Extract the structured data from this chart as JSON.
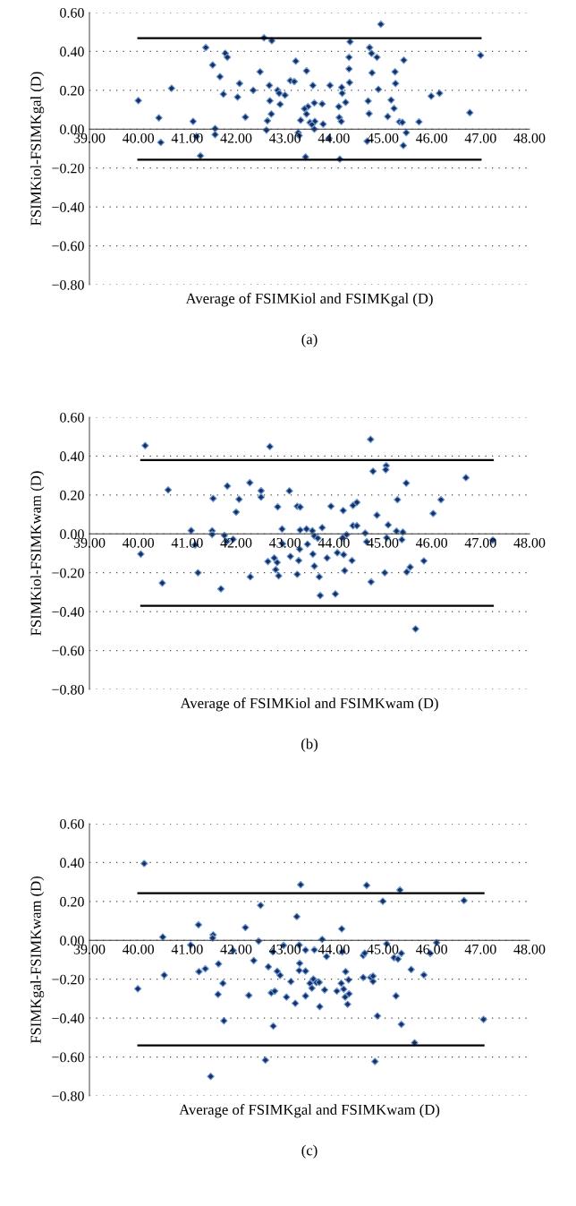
{
  "chart_data": [
    {
      "type": "scatter",
      "title": "(a)",
      "xlabel": "Average of FSIMKiol and FSIMKgal (D)",
      "ylabel": "FSIMKiol-FSIMKgal (D)",
      "xlim": [
        39,
        48
      ],
      "ylim": [
        -0.8,
        0.6
      ],
      "xticks": [
        {
          "value": 39,
          "label": "39.00"
        },
        {
          "value": 40,
          "label": "40.00"
        },
        {
          "value": 41,
          "label": "41.00"
        },
        {
          "value": 42,
          "label": "42.00"
        },
        {
          "value": 43,
          "label": "43.00"
        },
        {
          "value": 44,
          "label": "44.00"
        },
        {
          "value": 45,
          "label": "45.00"
        },
        {
          "value": 46,
          "label": "46.00"
        },
        {
          "value": 47,
          "label": "47.00"
        },
        {
          "value": 48,
          "label": "48.00"
        }
      ],
      "yticks": [
        {
          "value": -0.8,
          "label": "−0.80"
        },
        {
          "value": -0.6,
          "label": "−0.60"
        },
        {
          "value": -0.4,
          "label": "−0.40"
        },
        {
          "value": -0.2,
          "label": "−0.20"
        },
        {
          "value": 0,
          "label": "0.00"
        },
        {
          "value": 0.2,
          "label": "0.20"
        },
        {
          "value": 0.4,
          "label": "0.40"
        },
        {
          "value": 0.6,
          "label": "0.60"
        }
      ],
      "grid": "y",
      "series": [
        {
          "marker": "diamond",
          "color": "#1b2f5e",
          "x": [
            44.96,
            42.57,
            42.73,
            44.33,
            41.38,
            44.73,
            41.78,
            44.77,
            41.82,
            44.88,
            44.31,
            47.0,
            43.22,
            45.43,
            41.52,
            43.44,
            44.31,
            42.49,
            45.25,
            44.78,
            41.67,
            43.11,
            43.19,
            44.32,
            45.26,
            42.07,
            42.68,
            43.57,
            43.92,
            44.16,
            40.68,
            42.35,
            42.85,
            44.91,
            41.74,
            42.88,
            44.17,
            46.16,
            43.0,
            45.99,
            42.03,
            40.0,
            42.69,
            44.7,
            45.17,
            44.24,
            43.6,
            43.76,
            42.9,
            43.47,
            44.1,
            43.4,
            45.23,
            43.44,
            42.72,
            44.72,
            46.78,
            40.42,
            42.19,
            44.11,
            45.1,
            42.64,
            43.32,
            41.12,
            44.15,
            43.61,
            43.51,
            45.34,
            45.4,
            45.74,
            43.55,
            43.78,
            41.57,
            43.6,
            42.62,
            43.27,
            41.19,
            43.29,
            41.57,
            45.48,
            40.46,
            43.9,
            44.68,
            45.42,
            41.27,
            43.42,
            44.12
          ],
          "values": [
            0.54,
            0.47,
            0.455,
            0.45,
            0.42,
            0.42,
            0.39,
            0.39,
            0.37,
            0.37,
            0.37,
            0.38,
            0.35,
            0.355,
            0.33,
            0.3,
            0.31,
            0.295,
            0.295,
            0.29,
            0.27,
            0.25,
            0.245,
            0.24,
            0.235,
            0.235,
            0.225,
            0.225,
            0.225,
            0.215,
            0.21,
            0.2,
            0.2,
            0.205,
            0.18,
            0.185,
            0.185,
            0.185,
            0.175,
            0.17,
            0.165,
            0.147,
            0.146,
            0.145,
            0.15,
            0.138,
            0.135,
            0.13,
            0.128,
            0.116,
            0.116,
            0.105,
            0.107,
            0.078,
            0.078,
            0.08,
            0.085,
            0.058,
            0.062,
            0.06,
            0.065,
            0.043,
            0.046,
            0.04,
            0.04,
            0.04,
            0.034,
            0.038,
            0.035,
            0.038,
            0.024,
            0.026,
            0.003,
            0.0,
            -0.005,
            -0.018,
            -0.037,
            -0.033,
            -0.028,
            -0.018,
            -0.068,
            -0.047,
            -0.062,
            -0.084,
            -0.137,
            -0.143,
            -0.154
          ]
        },
        {
          "type": "line",
          "color": "#000000",
          "x": [
            40.0,
            47.0
          ],
          "values": [
            0.468,
            0.468
          ]
        },
        {
          "type": "line",
          "color": "#000000",
          "x": [
            40.0,
            47.0
          ],
          "values": [
            -0.157,
            -0.157
          ]
        }
      ]
    },
    {
      "type": "scatter",
      "title": "(b)",
      "xlabel": "Average of FSIMKiol and FSIMKwam (D)",
      "ylabel": "FSIMKiol-FSIMKwam (D)",
      "xlim": [
        39,
        48
      ],
      "ylim": [
        -0.8,
        0.6
      ],
      "xticks": [
        {
          "value": 39,
          "label": "39.00"
        },
        {
          "value": 40,
          "label": "40.00"
        },
        {
          "value": 41,
          "label": "41.00"
        },
        {
          "value": 42,
          "label": "42.00"
        },
        {
          "value": 43,
          "label": "43.00"
        },
        {
          "value": 44,
          "label": "44.00"
        },
        {
          "value": 45,
          "label": "45.00"
        },
        {
          "value": 46,
          "label": "46.00"
        },
        {
          "value": 47,
          "label": "47.00"
        },
        {
          "value": 48,
          "label": "48.00"
        }
      ],
      "yticks": [
        {
          "value": -0.8,
          "label": "−0.80"
        },
        {
          "value": -0.6,
          "label": "−0.60"
        },
        {
          "value": -0.4,
          "label": "−0.40"
        },
        {
          "value": -0.2,
          "label": "−0.20"
        },
        {
          "value": 0,
          "label": "0.00"
        },
        {
          "value": 0.2,
          "label": "0.20"
        },
        {
          "value": 0.4,
          "label": "0.40"
        },
        {
          "value": 0.6,
          "label": "0.60"
        }
      ],
      "grid": "y",
      "series": [
        {
          "marker": "diamond",
          "color": "#1b2f5e",
          "x": [
            40.14,
            42.69,
            44.75,
            44.8,
            45.07,
            45.06,
            46.7,
            45.48,
            40.61,
            42.28,
            41.82,
            42.51,
            42.51,
            43.09,
            41.53,
            42.06,
            45.3,
            46.19,
            42.85,
            43.25,
            43.31,
            43.94,
            44.47,
            44.39,
            44.19,
            42.0,
            46.03,
            44.88,
            44.39,
            44.47,
            45.11,
            43.76,
            42.94,
            41.08,
            41.51,
            43.31,
            43.44,
            43.56,
            45.28,
            45.41,
            44.64,
            41.51,
            41.76,
            43.6,
            43.67,
            44.26,
            44.18,
            45.08,
            41.94,
            41.81,
            45.39,
            44.67,
            41.16,
            42.95,
            43.46,
            43.3,
            40.05,
            43.57,
            44.07,
            44.2,
            43.11,
            42.78,
            43.86,
            42.65,
            42.84,
            43.28,
            44.37,
            45.84,
            43.6,
            42.81,
            45.56,
            41.22,
            43.25,
            44.22,
            45.04,
            45.49,
            42.87,
            42.29,
            43.7,
            40.49,
            44.76,
            41.69,
            43.72,
            44.03,
            45.67,
            47.25
          ],
          "values": [
            0.454,
            0.449,
            0.486,
            0.322,
            0.351,
            0.33,
            0.289,
            0.261,
            0.226,
            0.263,
            0.246,
            0.222,
            0.189,
            0.221,
            0.182,
            0.178,
            0.176,
            0.176,
            0.139,
            0.142,
            0.138,
            0.142,
            0.162,
            0.146,
            0.12,
            0.112,
            0.105,
            0.096,
            0.042,
            0.042,
            0.046,
            0.032,
            0.025,
            0.017,
            0.016,
            0.02,
            0.025,
            0.016,
            0.014,
            0.009,
            0.004,
            -0.003,
            -0.008,
            -0.011,
            -0.022,
            -0.004,
            -0.02,
            -0.02,
            -0.028,
            -0.039,
            -0.03,
            -0.041,
            -0.057,
            -0.051,
            -0.053,
            -0.079,
            -0.104,
            -0.104,
            -0.097,
            -0.107,
            -0.116,
            -0.124,
            -0.124,
            -0.142,
            -0.147,
            -0.137,
            -0.137,
            -0.139,
            -0.166,
            -0.184,
            -0.171,
            -0.2,
            -0.208,
            -0.189,
            -0.2,
            -0.196,
            -0.216,
            -0.221,
            -0.221,
            -0.253,
            -0.247,
            -0.283,
            -0.317,
            -0.309,
            -0.489,
            -0.032
          ]
        },
        {
          "type": "line",
          "color": "#000000",
          "x": [
            40.06,
            47.25
          ],
          "values": [
            0.38,
            0.38
          ]
        },
        {
          "type": "line",
          "color": "#000000",
          "x": [
            40.06,
            47.25
          ],
          "values": [
            -0.37,
            -0.37
          ]
        }
      ]
    },
    {
      "type": "scatter",
      "title": "(c)",
      "xlabel": "Average of FSIMKgal and FSIMKwam (D)",
      "ylabel": "FSIMKgal-FSIMKwam (D)",
      "xlim": [
        39,
        48
      ],
      "ylim": [
        -0.8,
        0.6
      ],
      "xticks": [
        {
          "value": 39,
          "label": "39.00"
        },
        {
          "value": 40,
          "label": "40.00"
        },
        {
          "value": 41,
          "label": "41.00"
        },
        {
          "value": 42,
          "label": "42.00"
        },
        {
          "value": 43,
          "label": "43.00"
        },
        {
          "value": 44,
          "label": "44.00"
        },
        {
          "value": 45,
          "label": "45.00"
        },
        {
          "value": 46,
          "label": "46.00"
        },
        {
          "value": 47,
          "label": "47.00"
        },
        {
          "value": 48,
          "label": "48.00"
        }
      ],
      "yticks": [
        {
          "value": -0.8,
          "label": "−0.80"
        },
        {
          "value": -0.6,
          "label": "−0.60"
        },
        {
          "value": -0.4,
          "label": "−0.40"
        },
        {
          "value": -0.2,
          "label": "−0.20"
        },
        {
          "value": 0,
          "label": "0.00"
        },
        {
          "value": 0.2,
          "label": "0.20"
        },
        {
          "value": 0.4,
          "label": "0.40"
        },
        {
          "value": 0.6,
          "label": "0.60"
        }
      ],
      "grid": "y",
      "series": [
        {
          "marker": "diamond",
          "color": "#1b2f5e",
          "x": [
            40.12,
            43.32,
            44.67,
            45.35,
            45.0,
            46.66,
            42.5,
            43.24,
            41.23,
            42.19,
            44.16,
            40.5,
            41.53,
            41.52,
            42.46,
            43.76,
            41.07,
            45.08,
            46.1,
            41.94,
            42.97,
            43.29,
            42.75,
            43.42,
            43.6,
            43.85,
            44.17,
            44.6,
            44.63,
            45.23,
            45.31,
            45.38,
            45.97,
            42.36,
            41.64,
            43.3,
            42.66,
            41.24,
            41.37,
            42.84,
            42.9,
            43.29,
            43.42,
            44.24,
            45.58,
            40.53,
            43.12,
            43.58,
            43.64,
            43.7,
            43.51,
            44.3,
            44.6,
            44.75,
            44.8,
            44.8,
            45.84,
            41.73,
            39.99,
            44.15,
            43.55,
            43.81,
            44.06,
            44.2,
            42.72,
            42.79,
            41.63,
            42.26,
            43.03,
            43.42,
            44.23,
            44.31,
            45.27,
            43.21,
            44.28,
            43.71,
            44.89,
            47.06,
            45.38,
            41.75,
            42.76,
            45.65,
            42.6,
            44.84,
            41.48
          ],
          "values": [
            0.395,
            0.286,
            0.283,
            0.259,
            0.201,
            0.205,
            0.18,
            0.122,
            0.08,
            0.066,
            0.059,
            0.017,
            0.028,
            0.012,
            -0.004,
            0.005,
            -0.024,
            -0.018,
            -0.012,
            -0.053,
            -0.026,
            -0.024,
            -0.059,
            -0.05,
            -0.049,
            -0.083,
            -0.059,
            -0.078,
            -0.066,
            -0.089,
            -0.096,
            -0.067,
            -0.067,
            -0.104,
            -0.121,
            -0.118,
            -0.136,
            -0.161,
            -0.146,
            -0.159,
            -0.18,
            -0.155,
            -0.158,
            -0.161,
            -0.15,
            -0.179,
            -0.212,
            -0.199,
            -0.217,
            -0.216,
            -0.221,
            -0.203,
            -0.191,
            -0.191,
            -0.211,
            -0.184,
            -0.178,
            -0.221,
            -0.249,
            -0.221,
            -0.246,
            -0.255,
            -0.261,
            -0.251,
            -0.27,
            -0.261,
            -0.278,
            -0.283,
            -0.292,
            -0.286,
            -0.292,
            -0.275,
            -0.286,
            -0.324,
            -0.329,
            -0.341,
            -0.389,
            -0.407,
            -0.432,
            -0.414,
            -0.441,
            -0.527,
            -0.616,
            -0.623,
            -0.7
          ]
        },
        {
          "type": "line",
          "color": "#000000",
          "x": [
            40.0,
            47.06
          ],
          "values": [
            0.243,
            0.243
          ]
        },
        {
          "type": "line",
          "color": "#000000",
          "x": [
            40.0,
            47.06
          ],
          "values": [
            -0.54,
            -0.54
          ]
        }
      ]
    }
  ]
}
